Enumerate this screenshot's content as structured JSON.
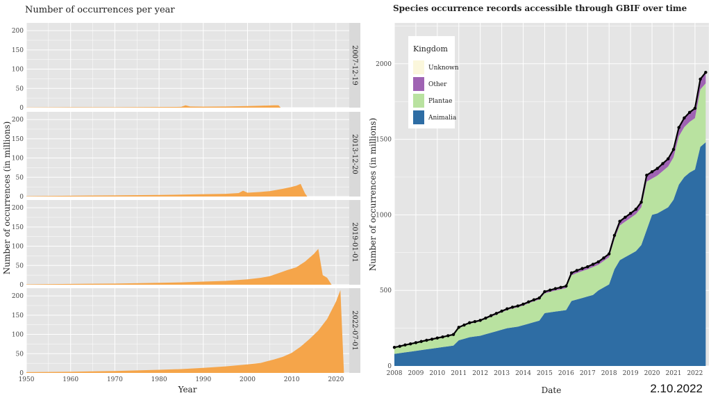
{
  "date_stamp": "2.10.2022",
  "colors": {
    "panel_bg": "#e5e5e5",
    "grid": "#ffffff",
    "strip_bg": "#d9d9d9",
    "orange": "#f5a54a",
    "animalia": "#2e6da4",
    "plantae": "#b9e2a0",
    "other": "#9f63b3",
    "unknown": "#fbf7dc",
    "total_line": "#000000"
  },
  "chart_data": [
    {
      "type": "area",
      "title": "Number of occurrences per year",
      "xlabel": "Year",
      "ylabel": "Number of occurrences (in millions)",
      "xlim": [
        1950,
        2023
      ],
      "ylim": [
        0,
        220
      ],
      "x_ticks": [
        "1950",
        "1960",
        "1970",
        "1980",
        "1990",
        "2000",
        "2010",
        "2020"
      ],
      "y_ticks": [
        "0",
        "50",
        "100",
        "150",
        "200"
      ],
      "facets": [
        {
          "label": "2007-12-19",
          "points": [
            [
              1950,
              0.5
            ],
            [
              1960,
              0.8
            ],
            [
              1970,
              1
            ],
            [
              1980,
              1.5
            ],
            [
              1985,
              2
            ],
            [
              1986,
              6
            ],
            [
              1987,
              3
            ],
            [
              1990,
              2.5
            ],
            [
              1995,
              3
            ],
            [
              2000,
              4
            ],
            [
              2003,
              5
            ],
            [
              2006,
              6
            ],
            [
              2007,
              6
            ],
            [
              2007.5,
              0
            ]
          ]
        },
        {
          "label": "2013-12-20",
          "points": [
            [
              1950,
              1
            ],
            [
              1960,
              2
            ],
            [
              1970,
              3
            ],
            [
              1980,
              4
            ],
            [
              1985,
              5
            ],
            [
              1990,
              6
            ],
            [
              1995,
              7
            ],
            [
              1998,
              9
            ],
            [
              1999,
              15
            ],
            [
              2000,
              10
            ],
            [
              2003,
              12
            ],
            [
              2005,
              14
            ],
            [
              2008,
              20
            ],
            [
              2010,
              25
            ],
            [
              2011,
              28
            ],
            [
              2012,
              33
            ],
            [
              2013,
              8
            ],
            [
              2013.5,
              0
            ]
          ]
        },
        {
          "label": "2019-01-01",
          "points": [
            [
              1950,
              1
            ],
            [
              1960,
              2
            ],
            [
              1970,
              3
            ],
            [
              1980,
              5
            ],
            [
              1985,
              6
            ],
            [
              1990,
              8
            ],
            [
              1995,
              10
            ],
            [
              2000,
              14
            ],
            [
              2003,
              18
            ],
            [
              2005,
              22
            ],
            [
              2007,
              30
            ],
            [
              2009,
              38
            ],
            [
              2011,
              45
            ],
            [
              2013,
              60
            ],
            [
              2015,
              80
            ],
            [
              2016,
              93
            ],
            [
              2017,
              25
            ],
            [
              2018,
              18
            ],
            [
              2019,
              0
            ]
          ]
        },
        {
          "label": "2022-07-01",
          "points": [
            [
              1950,
              2
            ],
            [
              1960,
              3
            ],
            [
              1970,
              5
            ],
            [
              1980,
              8
            ],
            [
              1985,
              10
            ],
            [
              1990,
              13
            ],
            [
              1995,
              17
            ],
            [
              2000,
              22
            ],
            [
              2003,
              26
            ],
            [
              2006,
              35
            ],
            [
              2008,
              42
            ],
            [
              2010,
              52
            ],
            [
              2012,
              68
            ],
            [
              2014,
              88
            ],
            [
              2016,
              110
            ],
            [
              2018,
              140
            ],
            [
              2020,
              185
            ],
            [
              2021,
              215
            ],
            [
              2021.8,
              0
            ]
          ]
        }
      ]
    },
    {
      "type": "area",
      "title": "Species occurrence records accessible through GBIF over time",
      "xlabel": "Date",
      "ylabel": "Number of occurrences (in millions)",
      "xlim": [
        2008,
        2022.65
      ],
      "ylim": [
        0,
        2270
      ],
      "x_ticks": [
        "2008",
        "2009",
        "2010",
        "2011",
        "2012",
        "2013",
        "2014",
        "2015",
        "2016",
        "2017",
        "2018",
        "2019",
        "2020",
        "2021",
        "2022"
      ],
      "y_ticks": [
        "0",
        "500",
        "1000",
        "1500",
        "2000"
      ],
      "legend": {
        "title": "Kingdom",
        "position": "top-left",
        "items": [
          {
            "label": "Unknown",
            "color": "#fbf7dc"
          },
          {
            "label": "Other",
            "color": "#9f63b3"
          },
          {
            "label": "Plantae",
            "color": "#b9e2a0"
          },
          {
            "label": "Animalia",
            "color": "#2e6da4"
          }
        ]
      },
      "x": [
        2008.0,
        2008.25,
        2008.5,
        2008.75,
        2009.0,
        2009.25,
        2009.5,
        2009.75,
        2010.0,
        2010.25,
        2010.5,
        2010.75,
        2011.0,
        2011.25,
        2011.5,
        2011.75,
        2012.0,
        2012.25,
        2012.5,
        2012.75,
        2013.0,
        2013.25,
        2013.5,
        2013.75,
        2014.0,
        2014.25,
        2014.5,
        2014.75,
        2015.0,
        2015.25,
        2015.5,
        2015.75,
        2016.0,
        2016.25,
        2016.5,
        2016.75,
        2017.0,
        2017.25,
        2017.5,
        2017.75,
        2018.0,
        2018.25,
        2018.5,
        2018.75,
        2019.0,
        2019.25,
        2019.5,
        2019.75,
        2020.0,
        2020.25,
        2020.5,
        2020.75,
        2021.0,
        2021.25,
        2021.5,
        2021.75,
        2022.0,
        2022.25,
        2022.5
      ],
      "series": [
        {
          "name": "Animalia",
          "values": [
            80,
            85,
            90,
            95,
            100,
            105,
            110,
            115,
            120,
            125,
            130,
            135,
            170,
            180,
            190,
            195,
            200,
            210,
            220,
            230,
            240,
            250,
            255,
            260,
            270,
            280,
            290,
            300,
            350,
            355,
            360,
            365,
            370,
            430,
            440,
            450,
            460,
            470,
            500,
            520,
            540,
            640,
            700,
            720,
            740,
            760,
            800,
            900,
            1000,
            1010,
            1030,
            1050,
            1100,
            1200,
            1250,
            1280,
            1300,
            1450,
            1480
          ]
        },
        {
          "name": "Plantae",
          "values": [
            40,
            42,
            45,
            47,
            50,
            53,
            55,
            57,
            60,
            62,
            65,
            67,
            80,
            85,
            90,
            92,
            95,
            100,
            105,
            110,
            115,
            120,
            125,
            128,
            130,
            135,
            138,
            140,
            130,
            135,
            140,
            142,
            145,
            170,
            175,
            178,
            180,
            185,
            170,
            175,
            180,
            200,
            230,
            235,
            240,
            245,
            250,
            320,
            240,
            250,
            260,
            270,
            280,
            320,
            330,
            335,
            340,
            380,
            390
          ]
        },
        {
          "name": "Other",
          "values": [
            2,
            2,
            3,
            3,
            3,
            3,
            4,
            4,
            4,
            4,
            4,
            5,
            5,
            5,
            5,
            6,
            6,
            6,
            7,
            7,
            7,
            7,
            8,
            8,
            8,
            8,
            9,
            9,
            10,
            10,
            10,
            11,
            12,
            14,
            15,
            15,
            15,
            16,
            17,
            18,
            20,
            22,
            25,
            27,
            28,
            30,
            32,
            40,
            42,
            44,
            46,
            48,
            50,
            55,
            58,
            60,
            62,
            65,
            70
          ]
        },
        {
          "name": "Unknown",
          "values": [
            1,
            1,
            1,
            1,
            1,
            1,
            1,
            1,
            1,
            1,
            1,
            1,
            1,
            1,
            1,
            1,
            1,
            1,
            1,
            1,
            1,
            1,
            1,
            1,
            1,
            1,
            1,
            1,
            2,
            2,
            2,
            2,
            2,
            2,
            2,
            2,
            2,
            2,
            2,
            2,
            2,
            2,
            2,
            2,
            2,
            2,
            2,
            2,
            3,
            3,
            3,
            3,
            3,
            3,
            3,
            3,
            3,
            3,
            3
          ]
        }
      ]
    }
  ]
}
